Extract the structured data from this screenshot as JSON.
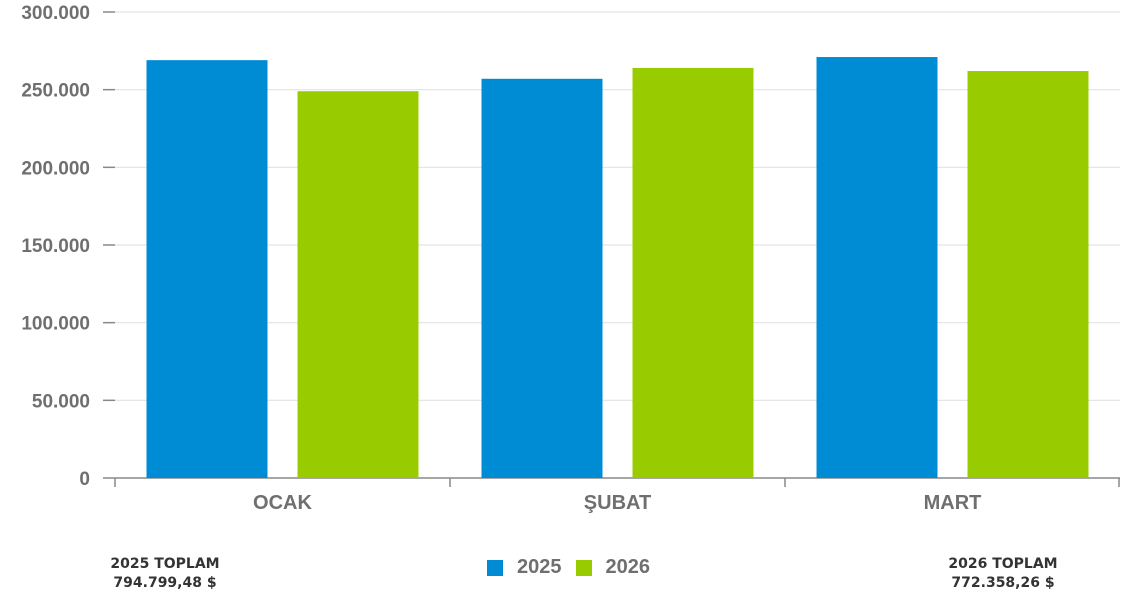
{
  "chart_data": {
    "type": "bar",
    "categories": [
      "OCAK",
      "ŞUBAT",
      "MART"
    ],
    "series": [
      {
        "name": "2025",
        "color": "#008bd5",
        "values": [
          269000,
          257000,
          271000
        ]
      },
      {
        "name": "2026",
        "color": "#99cc00",
        "values": [
          249000,
          264000,
          262000
        ]
      }
    ],
    "ylim": [
      0,
      300000
    ],
    "yticks": [
      "0",
      "50.000",
      "100.000",
      "150.000",
      "200.000",
      "250.000",
      "300.000"
    ],
    "grid": true,
    "legend_position": "bottom-center"
  },
  "totals": {
    "left": {
      "label": "2025 TOPLAM",
      "value": "794.799,48 $"
    },
    "right": {
      "label": "2026 TOPLAM",
      "value": "772.358,26 $"
    }
  }
}
